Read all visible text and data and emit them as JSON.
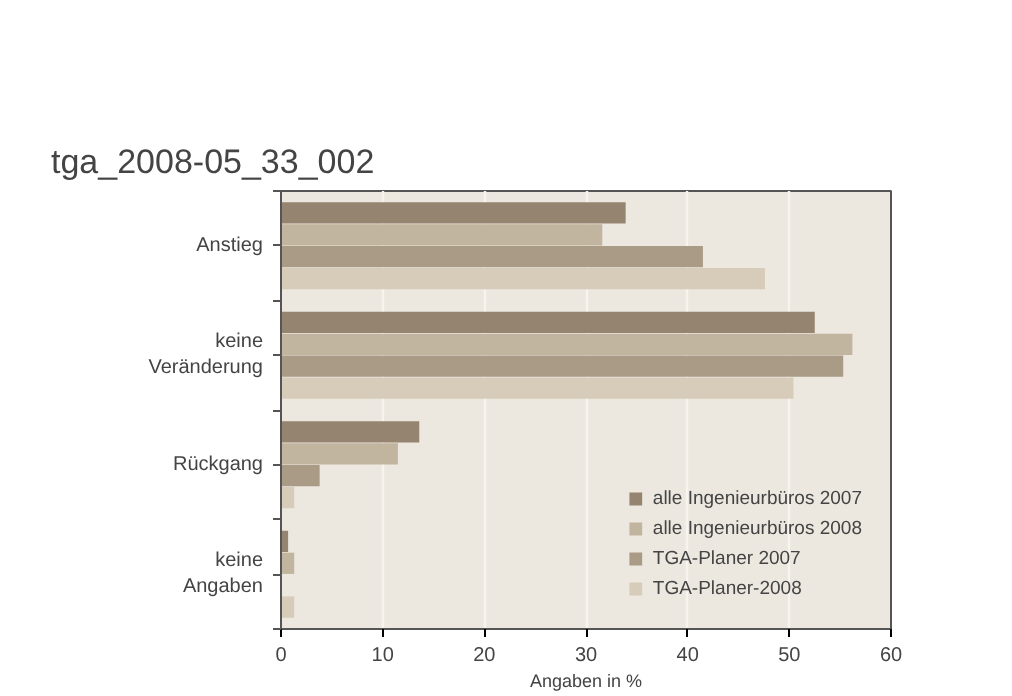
{
  "chart_data": {
    "type": "bar",
    "orientation": "horizontal",
    "title": "tga_2008-05_33_002",
    "xlabel": "Angaben in %",
    "categories": [
      "Anstieg",
      "keine\nVeränderung",
      "Rückgang",
      "keine\nAngaben"
    ],
    "series": [
      {
        "name": "alle Ingenieurbüros 2007",
        "color": "#958570",
        "values": [
          33.9,
          52.5,
          13.6,
          0.7
        ]
      },
      {
        "name": "alle Ingenieurbüros 2008",
        "color": "#c2b59f",
        "values": [
          31.6,
          56.2,
          11.5,
          1.3
        ]
      },
      {
        "name": "TGA-Planer 2007",
        "color": "#aa9b86",
        "values": [
          41.5,
          55.3,
          3.8,
          0
        ]
      },
      {
        "name": "TGA-Planer-2008",
        "color": "#d7ccba",
        "values": [
          47.6,
          50.4,
          1.3,
          1.3
        ]
      }
    ],
    "xlim": [
      0,
      60
    ],
    "xticks": [
      0,
      10,
      20,
      30,
      40,
      50,
      60
    ],
    "grid": "x",
    "legend": "bottom right"
  }
}
